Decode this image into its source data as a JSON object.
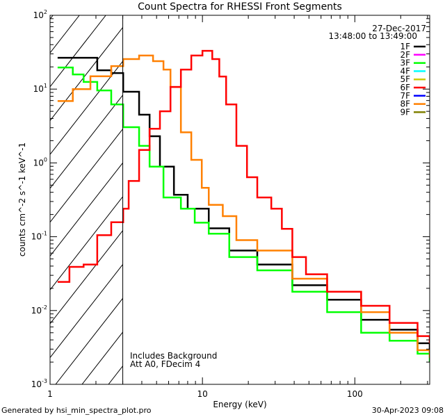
{
  "chart_data": {
    "type": "line",
    "title": "Count Spectra for RHESSI Front Segments",
    "xlabel": "Energy (keV)",
    "ylabel": "counts cm^-2 s^-1 keV^-1",
    "ylabel_parts": [
      "counts cm",
      "-2",
      " s",
      "-1",
      " keV",
      "-1"
    ],
    "xscale": "log",
    "yscale": "log",
    "xlim": [
      1,
      310
    ],
    "ylim": [
      0.001,
      100
    ],
    "x_tick_labels": [
      {
        "v": 1,
        "label": "1"
      },
      {
        "v": 10,
        "label": "10"
      },
      {
        "v": 100,
        "label": "100"
      }
    ],
    "y_tick_labels": [
      {
        "v": 100,
        "exp": "2"
      },
      {
        "v": 10,
        "exp": "1"
      },
      {
        "v": 1,
        "exp": "0"
      },
      {
        "v": 0.1,
        "exp": "-1"
      },
      {
        "v": 0.01,
        "exp": "-2"
      },
      {
        "v": 0.001,
        "exp": "-3"
      }
    ],
    "y_tick_base": "10",
    "hatched_region_keV": [
      1,
      3
    ],
    "legend": {
      "placement": "top-right",
      "date": "27-Dec-2017",
      "time_range": "13:48:00 to 13:49:00",
      "entries": [
        {
          "label": "1F",
          "color": "#000000"
        },
        {
          "label": "2F",
          "color": "#ff00ff"
        },
        {
          "label": "3F",
          "color": "#00ff00"
        },
        {
          "label": "4F",
          "color": "#00ffff"
        },
        {
          "label": "5F",
          "color": "#cccc00"
        },
        {
          "label": "6F",
          "color": "#ff0000"
        },
        {
          "label": "7F",
          "color": "#0000ff"
        },
        {
          "label": "8F",
          "color": "#ff8000"
        },
        {
          "label": "9F",
          "color": "#808000"
        }
      ]
    },
    "annotations": [
      "Includes Background",
      "Att A0, FDecim 4"
    ],
    "series": [
      {
        "name": "1F",
        "color": "#000000",
        "x": [
          1.18,
          2.04,
          2.52,
          3.02,
          3.84,
          4.5,
          5.26,
          6.5,
          8.0,
          11.0,
          15.0,
          22.9,
          38.9,
          65.8,
          110,
          169,
          258,
          310
        ],
        "y": [
          26.6,
          18,
          16.5,
          9.2,
          4.5,
          2.3,
          0.89,
          0.37,
          0.24,
          0.13,
          0.065,
          0.042,
          0.022,
          0.014,
          0.0075,
          0.0055,
          0.0036,
          0.0026
        ]
      },
      {
        "name": "3F",
        "color": "#00ff00",
        "x": [
          1.18,
          1.41,
          1.66,
          2.04,
          2.52,
          3.02,
          3.84,
          4.5,
          5.55,
          7.22,
          8.9,
          11.0,
          15.0,
          22.9,
          38.9,
          65.8,
          110,
          169,
          258,
          310
        ],
        "y": [
          19.6,
          15.8,
          12.5,
          9.6,
          6.2,
          3.05,
          1.7,
          0.89,
          0.34,
          0.24,
          0.155,
          0.11,
          0.053,
          0.035,
          0.018,
          0.0095,
          0.005,
          0.0039,
          0.0026,
          0.002
        ]
      },
      {
        "name": "8F",
        "color": "#ff8000",
        "x": [
          1.18,
          1.41,
          1.84,
          2.52,
          3.02,
          3.84,
          4.74,
          5.55,
          6.17,
          7.22,
          8.45,
          9.9,
          11.0,
          13.6,
          16.7,
          22.9,
          38.9,
          65.8,
          110,
          169,
          258,
          310
        ],
        "y": [
          6.9,
          10.0,
          14.9,
          20.5,
          25.5,
          28.5,
          23.9,
          18.4,
          10.7,
          2.6,
          1.1,
          0.46,
          0.27,
          0.19,
          0.09,
          0.065,
          0.027,
          0.018,
          0.0095,
          0.005,
          0.0029,
          0.0023
        ]
      },
      {
        "name": "6F",
        "color": "#ff0000",
        "x": [
          1.18,
          1.34,
          1.66,
          2.04,
          2.52,
          3.02,
          3.28,
          3.84,
          4.5,
          5.26,
          6.17,
          7.22,
          8.45,
          10.0,
          11.6,
          12.9,
          14.3,
          16.7,
          19.6,
          22.9,
          28.3,
          33.2,
          38.9,
          47.8,
          65.8,
          110,
          169,
          258,
          310
        ],
        "y": [
          0.0244,
          0.039,
          0.042,
          0.105,
          0.157,
          0.24,
          0.57,
          1.5,
          2.9,
          5.0,
          10.7,
          18.4,
          28.5,
          33,
          25.5,
          14.8,
          6.2,
          1.7,
          0.64,
          0.34,
          0.24,
          0.128,
          0.053,
          0.031,
          0.018,
          0.0116,
          0.0068,
          0.0045,
          0.0036
        ]
      }
    ]
  },
  "footer": {
    "generated_by": "Generated by hsi_min_spectra_plot.pro",
    "timestamp": "30-Apr-2023 09:08"
  }
}
